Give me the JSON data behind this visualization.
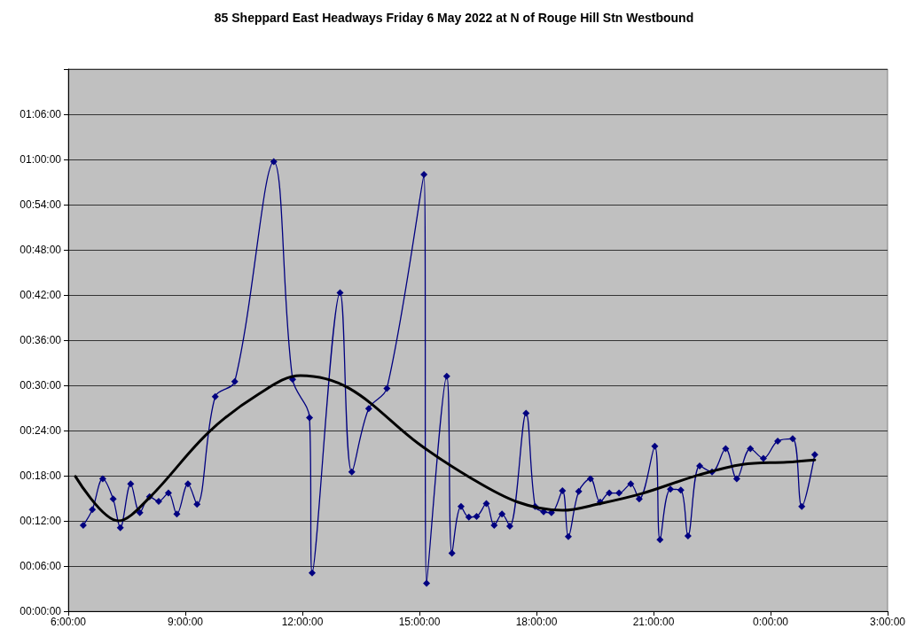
{
  "chart_data": {
    "type": "line",
    "title": "85 Sheppard East Headways Friday 6 May 2022 at N of Rouge Hill Stn Westbound",
    "xlim": [
      "2022-05-06T06:00",
      "2022-05-07T03:00"
    ],
    "xticks": [
      {
        "value": "2022-05-06T06:00",
        "label": "6:00:00"
      },
      {
        "value": "2022-05-06T09:00",
        "label": "9:00:00"
      },
      {
        "value": "2022-05-06T12:00",
        "label": "12:00:00"
      },
      {
        "value": "2022-05-06T15:00",
        "label": "15:00:00"
      },
      {
        "value": "2022-05-06T18:00",
        "label": "18:00:00"
      },
      {
        "value": "2022-05-06T21:00",
        "label": "21:00:00"
      },
      {
        "value": "2022-05-07T00:00",
        "label": "0:00:00"
      },
      {
        "value": "2022-05-07T03:00",
        "label": "3:00:00"
      }
    ],
    "ylim": [
      0,
      72
    ],
    "yticks": [
      {
        "value": 0,
        "label": "00:00:00"
      },
      {
        "value": 6,
        "label": "00:06:00"
      },
      {
        "value": 12,
        "label": "00:12:00"
      },
      {
        "value": 18,
        "label": "00:18:00"
      },
      {
        "value": 24,
        "label": "00:24:00"
      },
      {
        "value": 30,
        "label": "00:30:00"
      },
      {
        "value": 36,
        "label": "00:36:00"
      },
      {
        "value": 42,
        "label": "00:42:00"
      },
      {
        "value": 48,
        "label": "00:48:00"
      },
      {
        "value": 54,
        "label": "00:54:00"
      },
      {
        "value": 60,
        "label": "01:00:00"
      },
      {
        "value": 66,
        "label": "01:06:00"
      },
      {
        "value": 72,
        "label": null
      }
    ],
    "grid": "y",
    "series": [
      {
        "color": "#000080",
        "marker": "diamond",
        "x": [
          "2022-05-06T06:23",
          "2022-05-06T06:37",
          "2022-05-06T06:53",
          "2022-05-06T07:09",
          "2022-05-06T07:20",
          "2022-05-06T07:36",
          "2022-05-06T07:50",
          "2022-05-06T08:05",
          "2022-05-06T08:19",
          "2022-05-06T08:34",
          "2022-05-06T08:47",
          "2022-05-06T09:04",
          "2022-05-06T09:18",
          "2022-05-06T09:46",
          "2022-05-06T10:16",
          "2022-05-06T11:16",
          "2022-05-06T11:45",
          "2022-05-06T12:11",
          "2022-05-06T12:15",
          "2022-05-06T12:58",
          "2022-05-06T13:16",
          "2022-05-06T13:42",
          "2022-05-06T14:10",
          "2022-05-06T15:07",
          "2022-05-06T15:11",
          "2022-05-06T15:42",
          "2022-05-06T15:50",
          "2022-05-06T16:04",
          "2022-05-06T16:16",
          "2022-05-06T16:28",
          "2022-05-06T16:43",
          "2022-05-06T16:55",
          "2022-05-06T17:07",
          "2022-05-06T17:19",
          "2022-05-06T17:44",
          "2022-05-06T17:58",
          "2022-05-06T18:11",
          "2022-05-06T18:23",
          "2022-05-06T18:40",
          "2022-05-06T18:49",
          "2022-05-06T19:05",
          "2022-05-06T19:23",
          "2022-05-06T19:38",
          "2022-05-06T19:52",
          "2022-05-06T20:07",
          "2022-05-06T20:25",
          "2022-05-06T20:38",
          "2022-05-06T21:02",
          "2022-05-06T21:10",
          "2022-05-06T21:26",
          "2022-05-06T21:42",
          "2022-05-06T21:53",
          "2022-05-06T22:11",
          "2022-05-06T22:30",
          "2022-05-06T22:51",
          "2022-05-06T23:08",
          "2022-05-06T23:29",
          "2022-05-06T23:49",
          "2022-05-07T00:11",
          "2022-05-07T00:34",
          "2022-05-07T00:48",
          "2022-05-07T01:08"
        ],
        "values": [
          11.4,
          13.5,
          17.6,
          14.9,
          11.1,
          16.9,
          13.1,
          15.2,
          14.6,
          15.7,
          12.9,
          16.9,
          14.2,
          28.5,
          30.5,
          59.7,
          30.8,
          25.7,
          5.1,
          42.3,
          18.5,
          26.9,
          29.6,
          58.0,
          3.7,
          31.2,
          7.7,
          13.9,
          12.5,
          12.6,
          14.3,
          11.4,
          12.9,
          11.3,
          26.3,
          13.9,
          13.2,
          13.1,
          16.0,
          9.9,
          15.9,
          17.6,
          14.5,
          15.7,
          15.7,
          16.9,
          14.9,
          21.9,
          9.5,
          16.2,
          16.1,
          10.0,
          19.3,
          18.5,
          21.6,
          17.6,
          21.6,
          20.3,
          22.6,
          22.9,
          13.9,
          20.8
        ]
      },
      {
        "type": "line",
        "color": "#000000",
        "marker": "none",
        "x": [
          "2022-05-06T06:11",
          "2022-05-06T07:17",
          "2022-05-06T08:05",
          "2022-05-06T09:35",
          "2022-05-06T10:52",
          "2022-05-06T11:57",
          "2022-05-06T13:12",
          "2022-05-06T14:58",
          "2022-05-06T16:17",
          "2022-05-06T17:31",
          "2022-05-06T18:40",
          "2022-05-06T19:38",
          "2022-05-06T20:41",
          "2022-05-06T22:10",
          "2022-05-06T23:17",
          "2022-05-07T00:25",
          "2022-05-07T01:08"
        ],
        "values": [
          17.9,
          12.0,
          15.1,
          23.7,
          28.8,
          31.3,
          29.6,
          22.3,
          17.8,
          14.5,
          13.4,
          14.3,
          15.6,
          18.1,
          19.5,
          19.8,
          20.1
        ]
      }
    ]
  }
}
